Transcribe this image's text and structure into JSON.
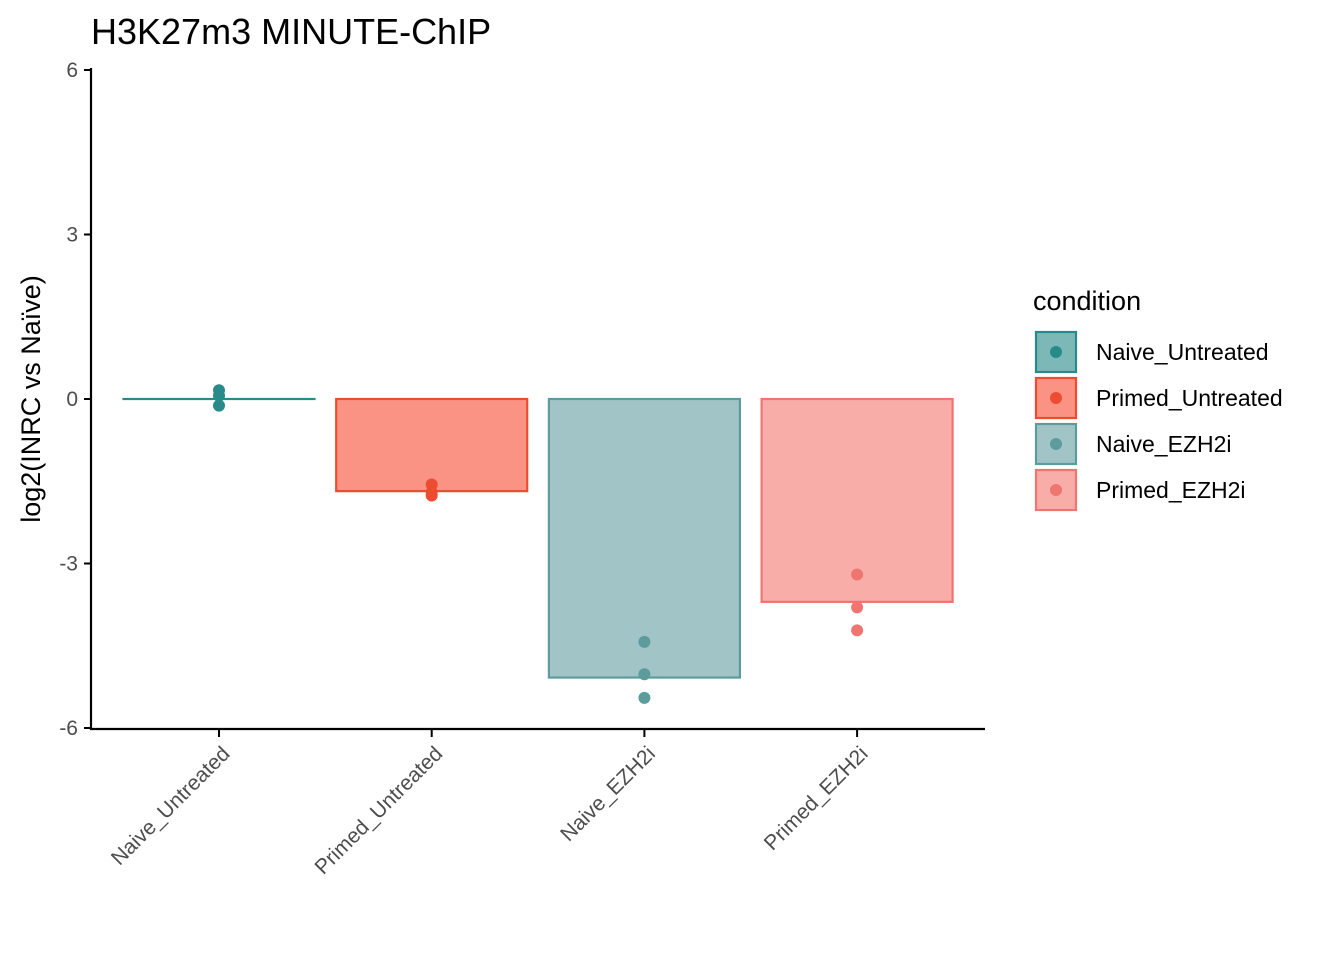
{
  "chart_data": {
    "type": "bar",
    "title": "H3K27m3 MINUTE-ChIP",
    "xlabel": "",
    "ylabel": "log2(INRC vs Naïve)",
    "ylim": [
      -6,
      6
    ],
    "yticks": [
      6,
      3,
      0,
      -3,
      -6
    ],
    "grid": false,
    "legend_title": "condition",
    "legend_position": "right",
    "categories": [
      "Naive_Untreated",
      "Primed_Untreated",
      "Naive_EZH2i",
      "Primed_EZH2i"
    ],
    "values": [
      0.0,
      -1.68,
      -5.08,
      -3.7
    ],
    "points": [
      [
        0.16,
        0.06,
        -0.12
      ],
      [
        -1.56,
        -1.7,
        -1.76
      ],
      [
        -4.43,
        -5.02,
        -5.45
      ],
      [
        -3.2,
        -3.8,
        -4.22
      ]
    ],
    "colors": {
      "Naive_Untreated": {
        "fill": "#7cb8b8",
        "stroke": "#2a8a8a",
        "point": "#2a8a8a"
      },
      "Primed_Untreated": {
        "fill": "#fa9383",
        "stroke": "#ee4b33",
        "point": "#ee4b33"
      },
      "Naive_EZH2i": {
        "fill": "#a1c5c7",
        "stroke": "#5d9b9d",
        "point": "#5d9b9d"
      },
      "Primed_EZH2i": {
        "fill": "#f8ada8",
        "stroke": "#ef7570",
        "point": "#ef7570"
      }
    }
  }
}
